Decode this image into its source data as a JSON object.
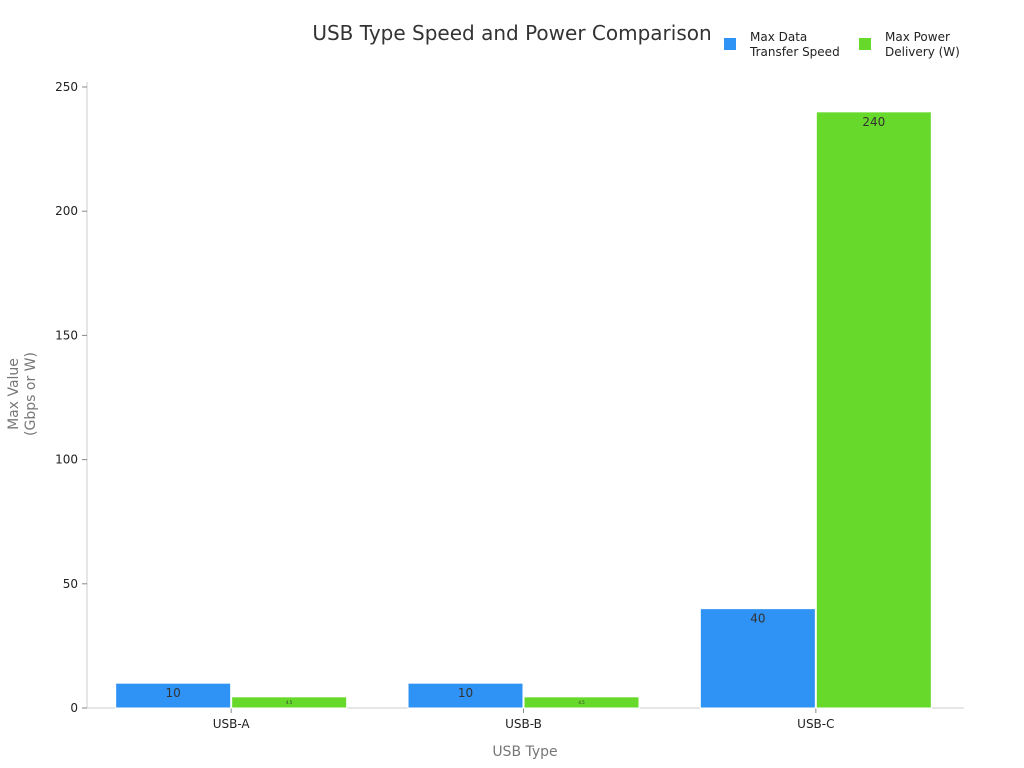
{
  "chart_data": {
    "type": "bar",
    "title": "USB Type Speed and Power Comparison",
    "xlabel": "USB Type",
    "ylabel": [
      "Max Value",
      "(Gbps or W)"
    ],
    "categories": [
      "USB-A",
      "USB-B",
      "USB-C"
    ],
    "ylim": [
      0,
      250
    ],
    "yticks": [
      0,
      50,
      100,
      150,
      200,
      250
    ],
    "grid": false,
    "legend_position": "top-right",
    "series": [
      {
        "name": [
          "Max Data",
          "Transfer Speed"
        ],
        "color": "#2f92f5",
        "values": [
          10,
          10,
          40
        ],
        "labels": [
          "10",
          "10",
          "40"
        ]
      },
      {
        "name": [
          "Max Power",
          "Delivery (W)"
        ],
        "color": "#66d92a",
        "values": [
          4.5,
          4.5,
          240
        ],
        "labels": [
          "4.5",
          "4.5",
          "240"
        ]
      }
    ]
  }
}
